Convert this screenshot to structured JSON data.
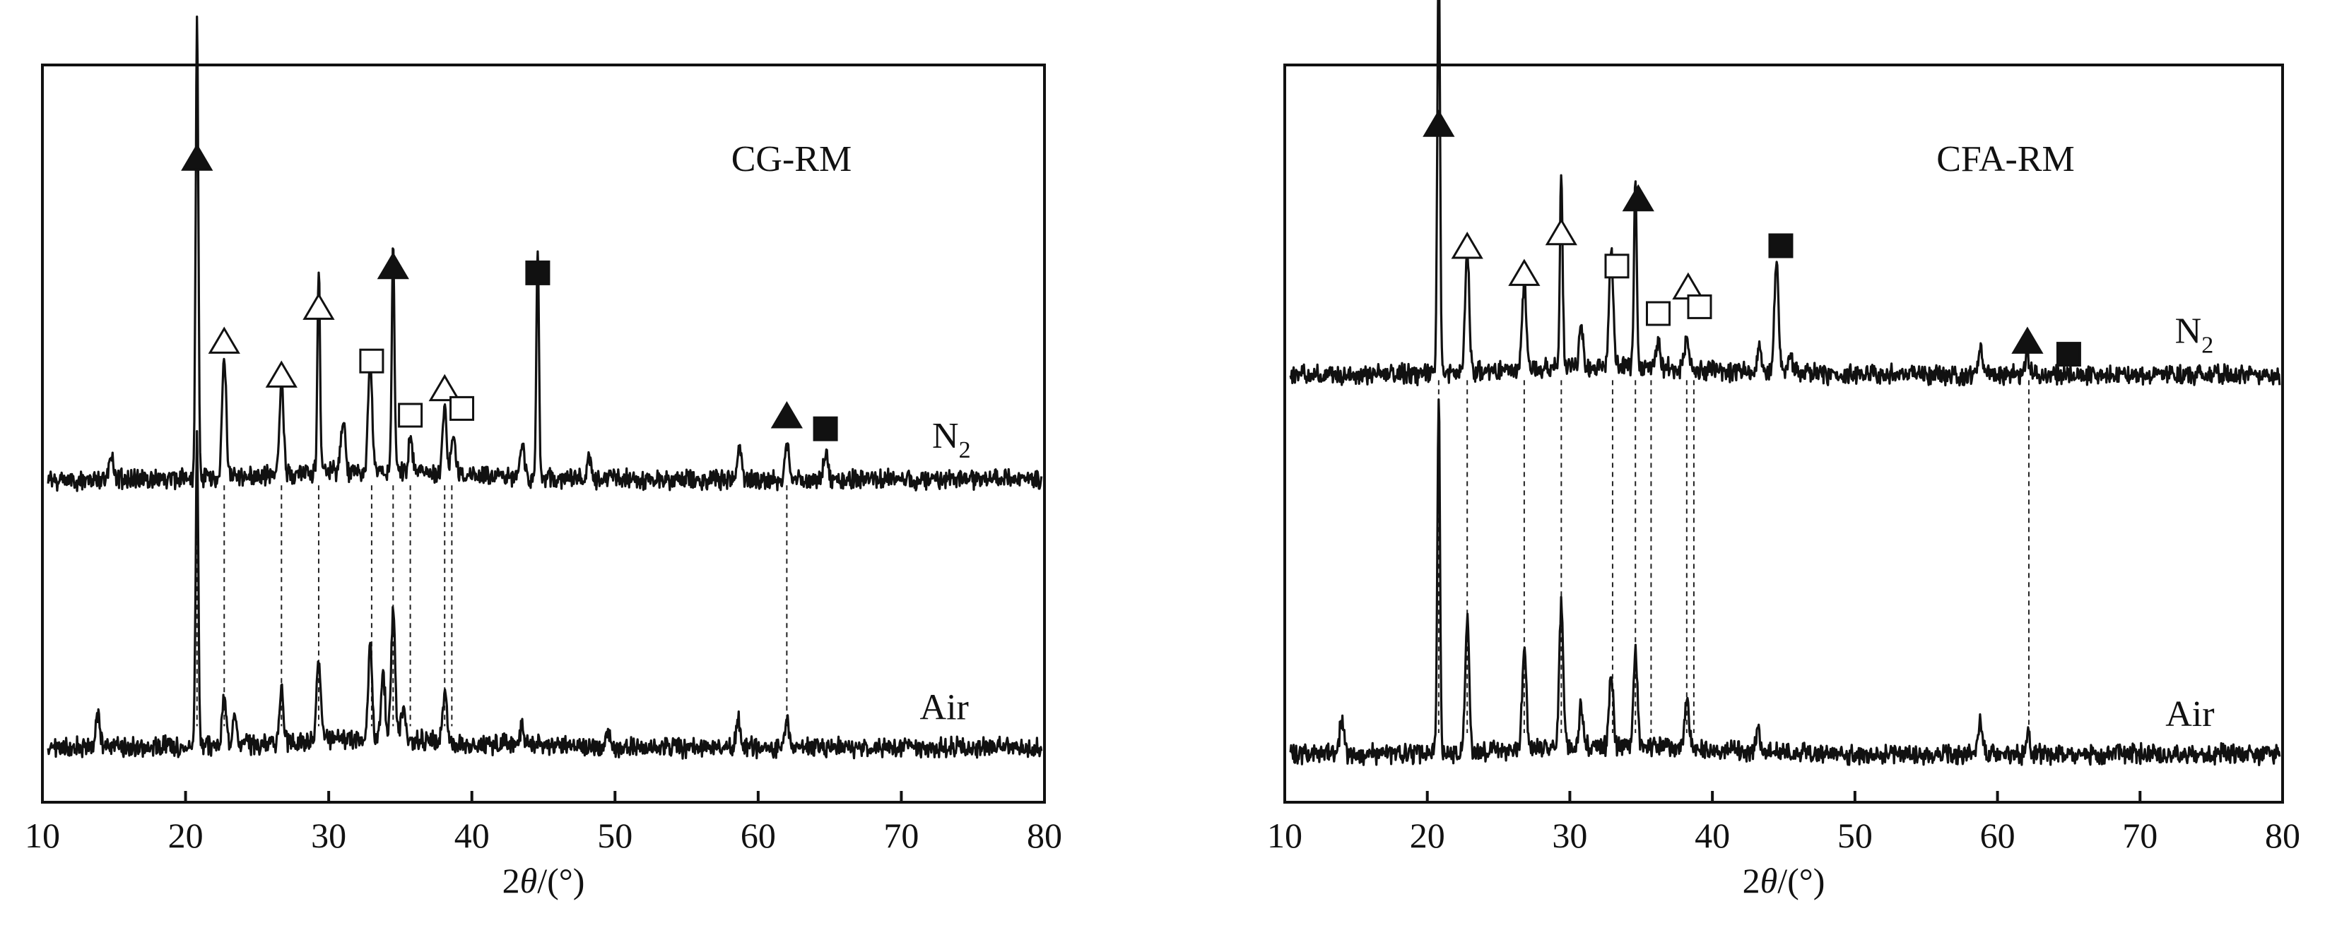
{
  "chart_data": [
    {
      "type": "line",
      "title": "CG-RM",
      "xlabel": "2θ/(°)",
      "xlabel_parts": {
        "prefix": "2",
        "symbol": "θ",
        "suffix": "/(°)"
      },
      "xlim": [
        10,
        80
      ],
      "x_ticks": [
        10,
        20,
        30,
        40,
        50,
        60,
        70,
        80
      ],
      "series": [
        {
          "name": "N2",
          "label_main": "N",
          "label_sub": "2",
          "baseline": 0.455,
          "label_x": 73.5,
          "peaks": [
            [
              14.8,
              0.04
            ],
            [
              20.8,
              0.68
            ],
            [
              22.7,
              0.18
            ],
            [
              26.7,
              0.14
            ],
            [
              29.3,
              0.3
            ],
            [
              31.0,
              0.08
            ],
            [
              32.9,
              0.16
            ],
            [
              34.5,
              0.34
            ],
            [
              35.7,
              0.05
            ],
            [
              38.1,
              0.1
            ],
            [
              38.7,
              0.06
            ],
            [
              43.5,
              0.05
            ],
            [
              44.6,
              0.34
            ],
            [
              48.2,
              0.03
            ],
            [
              58.7,
              0.05
            ],
            [
              62.0,
              0.05
            ],
            [
              64.7,
              0.04
            ]
          ]
        },
        {
          "name": "Air",
          "label_main": "Air",
          "label_sub": "",
          "baseline": 0.06,
          "label_x": 73.0,
          "peaks": [
            [
              13.9,
              0.05
            ],
            [
              20.8,
              0.46
            ],
            [
              22.7,
              0.07
            ],
            [
              23.4,
              0.05
            ],
            [
              26.7,
              0.08
            ],
            [
              29.3,
              0.12
            ],
            [
              32.9,
              0.14
            ],
            [
              33.8,
              0.1
            ],
            [
              34.5,
              0.19
            ],
            [
              35.2,
              0.05
            ],
            [
              38.1,
              0.07
            ],
            [
              43.5,
              0.03
            ],
            [
              49.5,
              0.02
            ],
            [
              58.6,
              0.04
            ],
            [
              62.0,
              0.04
            ]
          ]
        }
      ],
      "markers": [
        {
          "x": 20.8,
          "shape": "filled-triangle",
          "level": 0.93
        },
        {
          "x": 22.7,
          "shape": "open-triangle",
          "level": 0.66
        },
        {
          "x": 26.7,
          "shape": "open-triangle",
          "level": 0.61
        },
        {
          "x": 29.3,
          "shape": "open-triangle",
          "level": 0.71
        },
        {
          "x": 33.0,
          "shape": "open-square",
          "level": 0.63
        },
        {
          "x": 34.5,
          "shape": "filled-triangle",
          "level": 0.77
        },
        {
          "x": 35.7,
          "shape": "open-square",
          "level": 0.55
        },
        {
          "x": 38.1,
          "shape": "open-triangle",
          "level": 0.59
        },
        {
          "x": 39.3,
          "shape": "open-square",
          "level": 0.56
        },
        {
          "x": 44.6,
          "shape": "filled-square",
          "level": 0.76
        },
        {
          "x": 62.0,
          "shape": "filled-triangle",
          "level": 0.55
        },
        {
          "x": 64.7,
          "shape": "filled-square",
          "level": 0.53
        }
      ],
      "guide_x": [
        20.8,
        22.7,
        26.7,
        29.3,
        33.0,
        34.5,
        35.7,
        38.1,
        38.6,
        62.0
      ]
    },
    {
      "type": "line",
      "title": "CFA-RM",
      "xlabel": "2θ/(°)",
      "xlabel_parts": {
        "prefix": "2",
        "symbol": "θ",
        "suffix": "/(°)"
      },
      "xlim": [
        10,
        80
      ],
      "x_ticks": [
        10,
        20,
        30,
        40,
        50,
        60,
        70,
        80
      ],
      "series": [
        {
          "name": "N2",
          "label_main": "N",
          "label_sub": "2",
          "baseline": 0.61,
          "label_x": 73.8,
          "peaks": [
            [
              20.8,
              0.63
            ],
            [
              22.8,
              0.18
            ],
            [
              26.8,
              0.13
            ],
            [
              29.4,
              0.3
            ],
            [
              30.8,
              0.06
            ],
            [
              32.9,
              0.17
            ],
            [
              34.6,
              0.28
            ],
            [
              36.2,
              0.04
            ],
            [
              38.2,
              0.05
            ],
            [
              43.3,
              0.04
            ],
            [
              44.5,
              0.17
            ],
            [
              45.5,
              0.03
            ],
            [
              58.8,
              0.04
            ],
            [
              62.1,
              0.03
            ]
          ]
        },
        {
          "name": "Air",
          "label_main": "Air",
          "label_sub": "",
          "baseline": 0.05,
          "label_x": 73.5,
          "peaks": [
            [
              14.0,
              0.05
            ],
            [
              20.8,
              0.52
            ],
            [
              22.8,
              0.2
            ],
            [
              26.8,
              0.15
            ],
            [
              29.4,
              0.21
            ],
            [
              30.8,
              0.06
            ],
            [
              32.9,
              0.11
            ],
            [
              34.6,
              0.14
            ],
            [
              38.2,
              0.08
            ],
            [
              43.2,
              0.04
            ],
            [
              58.8,
              0.05
            ],
            [
              62.1,
              0.03
            ]
          ]
        }
      ],
      "markers": [
        {
          "x": 20.8,
          "shape": "filled-triangle",
          "level": 0.98
        },
        {
          "x": 22.8,
          "shape": "open-triangle",
          "level": 0.8
        },
        {
          "x": 26.8,
          "shape": "open-triangle",
          "level": 0.76
        },
        {
          "x": 29.4,
          "shape": "open-triangle",
          "level": 0.82
        },
        {
          "x": 33.3,
          "shape": "open-square",
          "level": 0.77
        },
        {
          "x": 34.8,
          "shape": "filled-triangle",
          "level": 0.87
        },
        {
          "x": 36.2,
          "shape": "open-square",
          "level": 0.7
        },
        {
          "x": 38.3,
          "shape": "open-triangle",
          "level": 0.74
        },
        {
          "x": 39.1,
          "shape": "open-square",
          "level": 0.71
        },
        {
          "x": 44.8,
          "shape": "filled-square",
          "level": 0.8
        },
        {
          "x": 62.1,
          "shape": "filled-triangle",
          "level": 0.66
        },
        {
          "x": 65.0,
          "shape": "filled-square",
          "level": 0.64
        }
      ],
      "guide_x": [
        20.8,
        22.8,
        26.8,
        29.4,
        33.0,
        34.6,
        35.7,
        38.2,
        38.7,
        62.2
      ]
    }
  ]
}
